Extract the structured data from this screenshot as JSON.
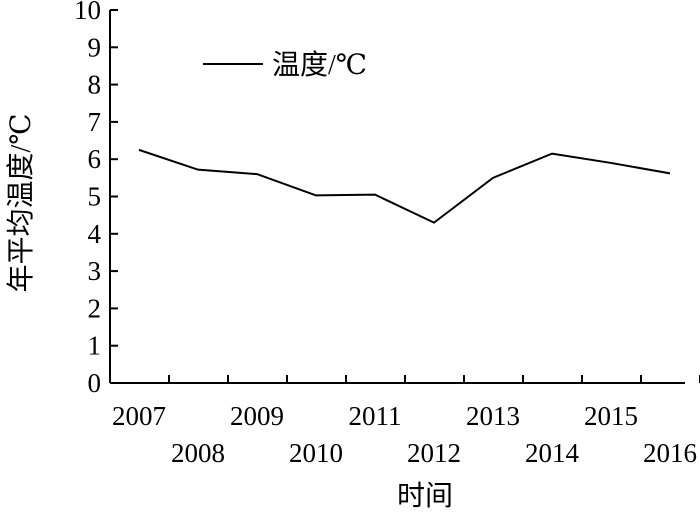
{
  "chart_data": {
    "type": "line",
    "title": "",
    "xlabel": "时间",
    "ylabel": "年平均温度/℃",
    "categories": [
      "2007",
      "2008",
      "2009",
      "2010",
      "2011",
      "2012",
      "2013",
      "2014",
      "2015",
      "2016"
    ],
    "series": [
      {
        "name": "温度/℃",
        "values": [
          6.25,
          5.72,
          5.6,
          5.03,
          5.05,
          4.3,
          5.5,
          6.15,
          5.9,
          5.62
        ],
        "color": "#000000"
      }
    ],
    "ylim": [
      0,
      10
    ],
    "yticks": [
      "0",
      "1",
      "2",
      "3",
      "4",
      "5",
      "6",
      "7",
      "8",
      "9",
      "10"
    ],
    "grid": false,
    "legend_position": "top-left"
  }
}
